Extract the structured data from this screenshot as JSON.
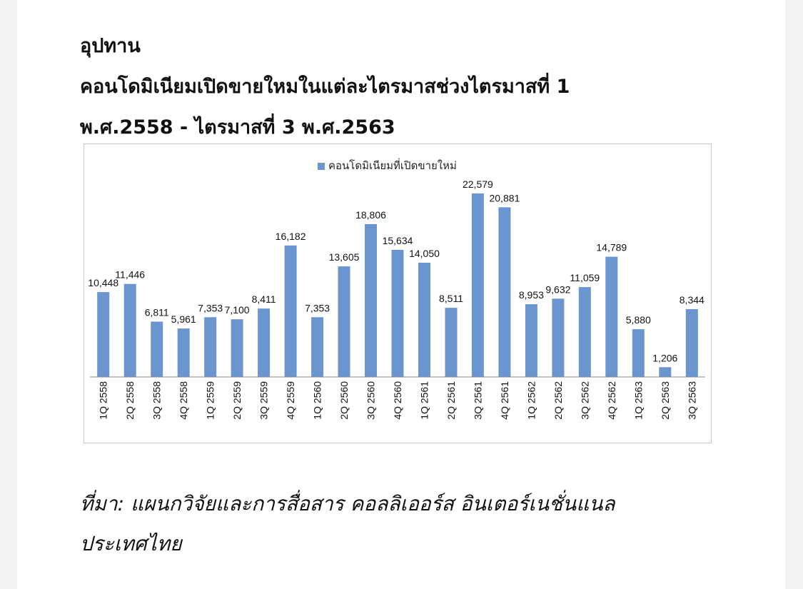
{
  "document": {
    "title_line1": "อุปทาน",
    "title_line2": "คอนโดมิเนียมเปิดขายใหมในแต่ละไตรมาสช่วงไตรมาสที่ 1",
    "title_line3": "พ.ศ.2558 - ไตรมาสที่ 3 พ.ศ.2563",
    "source_line1": "ที่มา: แผนกวิจัยและการสื่อสาร คอลลิเออร์ส อินเตอร์เนชั่นแนล",
    "source_line2": "ประเทศไทย"
  },
  "chart_data": {
    "type": "bar",
    "legend_position": "top-center",
    "grid": false,
    "bar_color": "#6b95cf",
    "ylim": [
      0,
      26000
    ],
    "categories": [
      "1Q 2558",
      "2Q 2558",
      "3Q 2558",
      "4Q 2558",
      "1Q 2559",
      "2Q 2559",
      "3Q 2559",
      "4Q 2559",
      "1Q 2560",
      "2Q 2560",
      "3Q 2560",
      "4Q 2560",
      "1Q 2561",
      "2Q 2561",
      "3Q 2561",
      "4Q 2561",
      "1Q 2562",
      "2Q 2562",
      "3Q 2562",
      "4Q 2562",
      "1Q 2563",
      "2Q 2563",
      "3Q 2563"
    ],
    "series": [
      {
        "name": "คอนโดมิเนียมที่เปิดขายใหม่",
        "values": [
          10448,
          11446,
          6811,
          5961,
          7353,
          7100,
          8411,
          16182,
          7353,
          13605,
          18806,
          15634,
          14050,
          8511,
          22579,
          20881,
          8953,
          9632,
          11059,
          14789,
          5880,
          1206,
          8344
        ],
        "labels": [
          "10,448",
          "11,446",
          "6,811",
          "5,961",
          "7,353",
          "7,100",
          "8,411",
          "16,182",
          "7,353",
          "13,605",
          "18,806",
          "15,634",
          "14,050",
          "8,511",
          "22,579",
          "20,881",
          "8,953",
          "9,632",
          "11,059",
          "14,789",
          "5,880",
          "1,206",
          "8,344"
        ]
      }
    ]
  }
}
